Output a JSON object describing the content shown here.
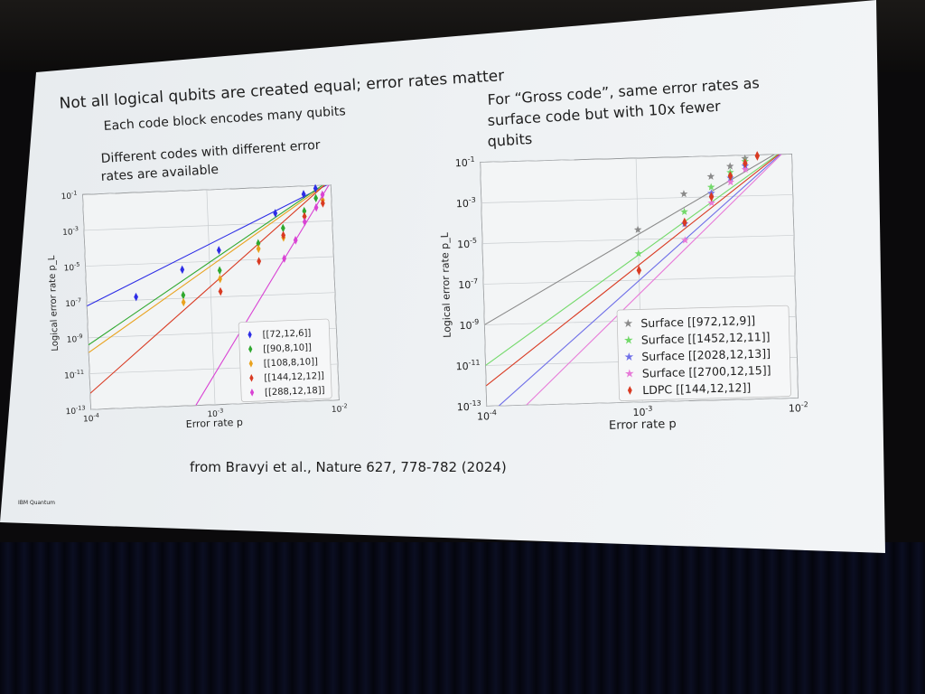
{
  "slide": {
    "title": "Not all logical qubits are created equal; error rates matter",
    "subtitle": "Each code block encodes many qubits",
    "left_caption": [
      "Different codes with different error",
      "rates are available"
    ],
    "right_caption": [
      "For “Gross code”, same error rates as",
      "surface code but with 10x fewer",
      "qubits"
    ],
    "citation": "from Bravyi et al., Nature 627, 778-782 (2024)",
    "footer_logo": "IBM Quantum"
  },
  "colors": {
    "blue": "#2d2de6",
    "green": "#2fa82f",
    "orange": "#e9a21d",
    "red": "#d93a22",
    "magenta": "#d943d4",
    "gray": "#8a8a8a",
    "light_green": "#73d96a",
    "light_blue": "#6f6fe8",
    "pink": "#e77ad8",
    "ldpc_red": "#d93a22"
  },
  "chart_data": [
    {
      "type": "line",
      "xscale": "log",
      "yscale": "log",
      "xlabel": "Error rate p",
      "ylabel": "Logical error rate p_L",
      "xlim": [
        0.0001,
        0.01
      ],
      "ylim": [
        1e-13,
        0.1
      ],
      "xticks": [
        "10^-4",
        "10^-3",
        "10^-2"
      ],
      "yticks": [
        "10^-1",
        "10^-3",
        "10^-5",
        "10^-7",
        "10^-9",
        "10^-11",
        "10^-13"
      ],
      "legend": "lower-right",
      "series": [
        {
          "name": "[[72,12,6]]",
          "color": "blue",
          "marker": "diamond",
          "line": [
            [
              0.0001,
              6e-08
            ],
            [
              0.01,
              0.13
            ]
          ],
          "points": [
            [
              0.00025,
              1.5e-07
            ],
            [
              0.0006,
              4e-06
            ],
            [
              0.0012,
              4e-05
            ],
            [
              0.0035,
              0.0035
            ],
            [
              0.006,
              0.035
            ],
            [
              0.0075,
              0.07
            ]
          ]
        },
        {
          "name": "[[90,8,10]]",
          "color": "green",
          "marker": "diamond",
          "line": [
            [
              0.0001,
              4e-10
            ],
            [
              0.01,
              0.2
            ]
          ],
          "points": [
            [
              0.0006,
              1.5e-07
            ],
            [
              0.0012,
              3e-06
            ],
            [
              0.0025,
              8e-05
            ],
            [
              0.004,
              0.0005
            ],
            [
              0.006,
              0.004
            ],
            [
              0.0075,
              0.02
            ]
          ]
        },
        {
          "name": "[[108,8,10]]",
          "color": "orange",
          "marker": "diamond",
          "line": [
            [
              0.0001,
              1.5e-10
            ],
            [
              0.01,
              0.17
            ]
          ],
          "points": [
            [
              0.0006,
              6e-08
            ],
            [
              0.0012,
              1e-06
            ],
            [
              0.0025,
              4e-05
            ],
            [
              0.004,
              0.00015
            ],
            [
              0.006,
              0.002
            ],
            [
              0.0085,
              0.015
            ]
          ]
        },
        {
          "name": "[[144,12,12]]",
          "color": "red",
          "marker": "diamond",
          "line": [
            [
              0.0001,
              8e-13
            ],
            [
              0.01,
              0.2
            ]
          ],
          "points": [
            [
              0.0012,
              2e-07
            ],
            [
              0.0025,
              8e-06
            ],
            [
              0.004,
              0.0002
            ],
            [
              0.006,
              0.002
            ],
            [
              0.0085,
              0.01
            ]
          ]
        },
        {
          "name": "[[288,12,18]]",
          "color": "magenta",
          "marker": "diamond",
          "line": [
            [
              0.0007,
              1e-13
            ],
            [
              0.01,
              0.15
            ]
          ],
          "points": [
            [
              0.004,
              1e-05
            ],
            [
              0.005,
              0.0001
            ],
            [
              0.006,
              0.001
            ],
            [
              0.0075,
              0.006
            ],
            [
              0.0085,
              0.03
            ]
          ]
        }
      ]
    },
    {
      "type": "line",
      "xscale": "log",
      "yscale": "log",
      "xlabel": "Error rate p",
      "ylabel": "Logical error rate p_L",
      "xlim": [
        0.0001,
        0.01
      ],
      "ylim": [
        1e-13,
        0.1
      ],
      "xticks": [
        "10^-4",
        "10^-3",
        "10^-2"
      ],
      "yticks": [
        "10^-1",
        "10^-3",
        "10^-5",
        "10^-7",
        "10^-9",
        "10^-11",
        "10^-13"
      ],
      "legend": "lower-right",
      "series": [
        {
          "name": "Surface [[972,12,9]]",
          "color": "gray",
          "marker": "star",
          "line": [
            [
              0.0001,
              1e-09
            ],
            [
              0.01,
              0.3
            ]
          ],
          "points": [
            [
              0.001,
              3e-05
            ],
            [
              0.002,
              0.0015
            ],
            [
              0.003,
              0.01
            ],
            [
              0.004,
              0.03
            ],
            [
              0.005,
              0.07
            ]
          ]
        },
        {
          "name": "Surface [[1452,12,11]]",
          "color": "light_green",
          "marker": "star",
          "line": [
            [
              0.0001,
              1e-11
            ],
            [
              0.01,
              0.3
            ]
          ],
          "points": [
            [
              0.001,
              2e-06
            ],
            [
              0.002,
              0.0002
            ],
            [
              0.003,
              0.003
            ],
            [
              0.004,
              0.015
            ],
            [
              0.005,
              0.05
            ]
          ]
        },
        {
          "name": "Surface [[2028,12,13]]",
          "color": "light_blue",
          "marker": "star",
          "line": [
            [
              0.00012,
              1e-13
            ],
            [
              0.01,
              0.3
            ]
          ],
          "points": [
            [
              0.002,
              5e-05
            ],
            [
              0.003,
              0.0015
            ],
            [
              0.004,
              0.008
            ],
            [
              0.005,
              0.03
            ]
          ]
        },
        {
          "name": "Surface [[2700,12,15]]",
          "color": "pink",
          "marker": "star",
          "line": [
            [
              0.00018,
              1e-13
            ],
            [
              0.01,
              0.3
            ]
          ],
          "points": [
            [
              0.002,
              8e-06
            ],
            [
              0.003,
              0.0005
            ],
            [
              0.004,
              0.005
            ],
            [
              0.005,
              0.02
            ]
          ]
        },
        {
          "name": "LDPC [[144,12,12]]",
          "color": "ldpc_red",
          "marker": "diamond",
          "line": [
            [
              0.0001,
              1e-12
            ],
            [
              0.01,
              0.3
            ]
          ],
          "points": [
            [
              0.001,
              3e-07
            ],
            [
              0.002,
              6e-05
            ],
            [
              0.003,
              0.001
            ],
            [
              0.004,
              0.01
            ],
            [
              0.005,
              0.04
            ],
            [
              0.006,
              0.09
            ]
          ]
        }
      ]
    }
  ]
}
